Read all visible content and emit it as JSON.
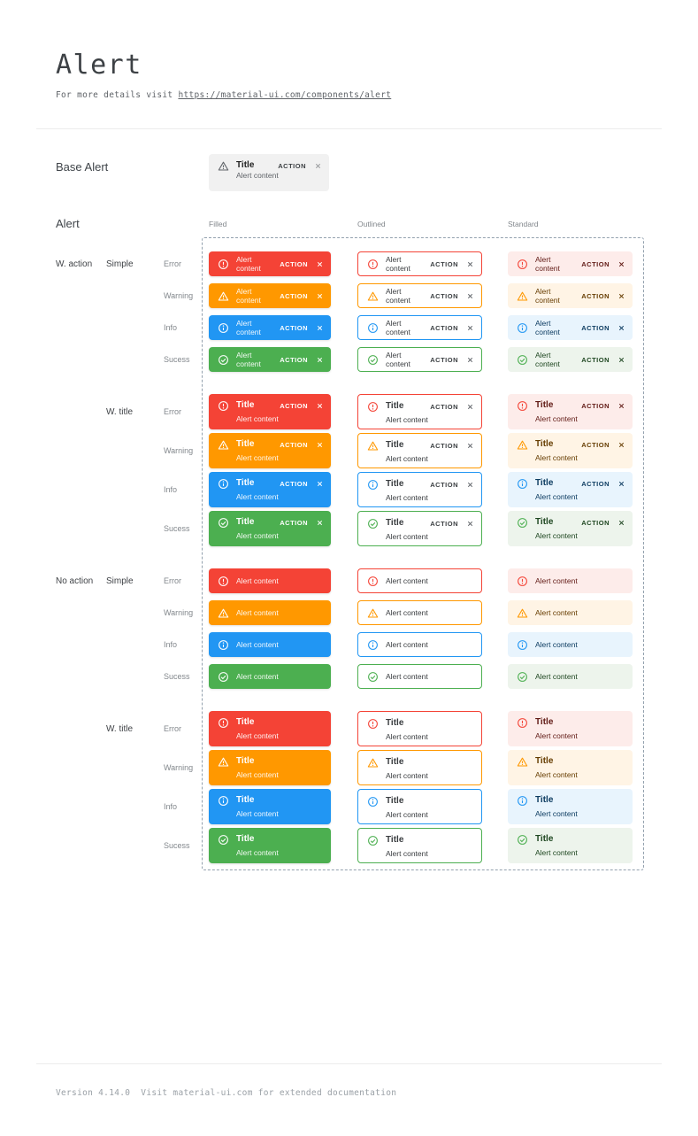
{
  "page": {
    "title": "Alert",
    "subtitle_prefix": "For more details visit ",
    "subtitle_link": "https://material-ui.com/components/alert",
    "footer": "Version 4.14.0  Visit material-ui.com for extended documentation"
  },
  "base_section": {
    "label": "Base Alert",
    "alert": {
      "icon": "warning-triangle-icon",
      "title": "Title",
      "content": "Alert content",
      "action": "ACTION",
      "close": "close-icon"
    }
  },
  "alert_section": {
    "label": "Alert",
    "columns": [
      "Filled",
      "Outlined",
      "Standard"
    ],
    "strings": {
      "title": "Title",
      "content": "Alert content",
      "action": "ACTION"
    },
    "groups": [
      {
        "group_label": "W. action",
        "variant_label": "Simple",
        "has_action": true,
        "has_title": false
      },
      {
        "group_label": "",
        "variant_label": "W. title",
        "has_action": true,
        "has_title": true
      },
      {
        "group_label": "No action",
        "variant_label": "Simple",
        "has_action": false,
        "has_title": false
      },
      {
        "group_label": "",
        "variant_label": "W. title",
        "has_action": false,
        "has_title": true
      }
    ],
    "severities": [
      {
        "key": "error",
        "label": "Error",
        "icon": "error-outline-icon",
        "colors": {
          "main": "#f44336",
          "filled_bg": "#f44336",
          "standard_bg": "#fdecea",
          "standard_text": "#611a15"
        }
      },
      {
        "key": "warning",
        "label": "Warning",
        "icon": "warning-triangle-icon",
        "colors": {
          "main": "#ff9800",
          "filled_bg": "#ff9800",
          "standard_bg": "#fff4e5",
          "standard_text": "#663c00"
        }
      },
      {
        "key": "info",
        "label": "Info",
        "icon": "info-outline-icon",
        "colors": {
          "main": "#2196f3",
          "filled_bg": "#2196f3",
          "standard_bg": "#e8f4fd",
          "standard_text": "#0d3c61"
        }
      },
      {
        "key": "sucess",
        "label": "Sucess",
        "icon": "check-circle-outline-icon",
        "colors": {
          "main": "#4caf50",
          "filled_bg": "#4caf50",
          "standard_bg": "#edf4ec",
          "standard_text": "#1e4620"
        }
      }
    ]
  },
  "theme": {
    "filled_text": "#ffffff",
    "outlined_text": "#3a3d40",
    "outlined_action": "#3c4043",
    "outlined_close": "#5f6368",
    "dashed_border": "#93a1ae",
    "divider": "#ececec",
    "base_alert_bg": "#f1f1f1",
    "base_alert_icon": "#5f6368",
    "base_alert_action": "#3c4043",
    "base_alert_close": "#97999c"
  }
}
